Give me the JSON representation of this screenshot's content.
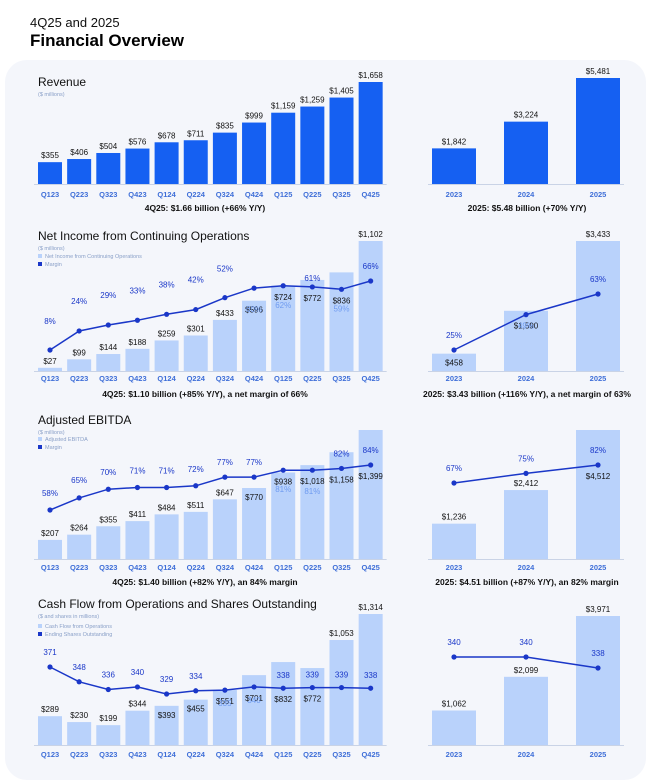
{
  "header": {
    "subtitle": "4Q25 and 2025",
    "title": "Financial Overview"
  },
  "colors": {
    "dark_bar": "#1560f2",
    "light_bar": "#b9d2fb",
    "line": "#1a37c8",
    "axis_label": "#3f6fd8",
    "light_label": "#6f9bf0",
    "muted": "#8aa0c8"
  },
  "chart_data": [
    {
      "id": "revenue-quarterly",
      "type": "bar",
      "title": "Revenue",
      "subtitle": "($ millions)",
      "categories": [
        "Q123",
        "Q223",
        "Q323",
        "Q423",
        "Q124",
        "Q224",
        "Q324",
        "Q424",
        "Q125",
        "Q225",
        "Q325",
        "Q425"
      ],
      "values": [
        355,
        406,
        504,
        576,
        678,
        711,
        835,
        999,
        1159,
        1259,
        1405,
        1658
      ],
      "value_labels": [
        "$355",
        "$406",
        "$504",
        "$576",
        "$678",
        "$711",
        "$835",
        "$999",
        "$1,159",
        "$1,259",
        "$1,405",
        "$1,658"
      ],
      "caption": "4Q25: $1.66 billion (+66% Y/Y)"
    },
    {
      "id": "revenue-annual",
      "type": "bar",
      "categories": [
        "2023",
        "2024",
        "2025"
      ],
      "values": [
        1842,
        3224,
        5481
      ],
      "value_labels": [
        "$1,842",
        "$3,224",
        "$5,481"
      ],
      "caption": "2025: $5.48 billion (+70% Y/Y)"
    },
    {
      "id": "net-income-quarterly",
      "type": "bar+line",
      "title": "Net Income from Continuing Operations",
      "subtitle": "($ millions)",
      "legend": [
        "Net Income from Continuing Operations",
        "Margin"
      ],
      "categories": [
        "Q123",
        "Q223",
        "Q323",
        "Q423",
        "Q124",
        "Q224",
        "Q324",
        "Q424",
        "Q125",
        "Q225",
        "Q325",
        "Q425"
      ],
      "values": [
        27,
        99,
        144,
        188,
        259,
        301,
        433,
        596,
        724,
        772,
        836,
        1102
      ],
      "value_labels": [
        "$27",
        "$99",
        "$144",
        "$188",
        "$259",
        "$301",
        "$433",
        "$596",
        "$724",
        "$772",
        "$836",
        "$1,102"
      ],
      "line_values": [
        8,
        24,
        29,
        33,
        38,
        42,
        52,
        60,
        62,
        61,
        59,
        66
      ],
      "line_labels": [
        "8%",
        "24%",
        "29%",
        "33%",
        "38%",
        "42%",
        "52%",
        "60%",
        "62%",
        "61%",
        "59%",
        "66%"
      ],
      "caption": "4Q25: $1.10 billion (+85% Y/Y), a net margin of 66%"
    },
    {
      "id": "net-income-annual",
      "type": "bar+line",
      "categories": [
        "2023",
        "2024",
        "2025"
      ],
      "values": [
        458,
        1590,
        3433
      ],
      "value_labels": [
        "$458",
        "$1,590",
        "$3,433"
      ],
      "line_values": [
        25,
        49,
        63
      ],
      "line_labels": [
        "25%",
        "49%",
        "63%"
      ],
      "caption": "2025:  $3.43 billion (+116% Y/Y), a net margin of 63%"
    },
    {
      "id": "ebitda-quarterly",
      "type": "bar+line",
      "title": "Adjusted EBITDA",
      "subtitle": "($ millions)",
      "legend": [
        "Adjusted EBITDA",
        "Margin"
      ],
      "categories": [
        "Q123",
        "Q223",
        "Q323",
        "Q423",
        "Q124",
        "Q224",
        "Q324",
        "Q424",
        "Q125",
        "Q225",
        "Q325",
        "Q425"
      ],
      "values": [
        207,
        264,
        355,
        411,
        484,
        511,
        647,
        770,
        938,
        1018,
        1158,
        1399
      ],
      "value_labels": [
        "$207",
        "$264",
        "$355",
        "$411",
        "$484",
        "$511",
        "$647",
        "$770",
        "$938",
        "$1,018",
        "$1,158",
        "$1,399"
      ],
      "line_values": [
        58,
        65,
        70,
        71,
        71,
        72,
        77,
        77,
        81,
        81,
        82,
        84
      ],
      "line_labels": [
        "58%",
        "65%",
        "70%",
        "71%",
        "71%",
        "72%",
        "77%",
        "77%",
        "81%",
        "81%",
        "82%",
        "84%"
      ],
      "caption": "4Q25: $1.40 billion (+82% Y/Y), an 84% margin"
    },
    {
      "id": "ebitda-annual",
      "type": "bar+line",
      "categories": [
        "2023",
        "2024",
        "2025"
      ],
      "values": [
        1236,
        2412,
        4512
      ],
      "value_labels": [
        "$1,236",
        "$2,412",
        "$4,512"
      ],
      "line_values": [
        67,
        75,
        82
      ],
      "line_labels": [
        "67%",
        "75%",
        "82%"
      ],
      "caption": "2025: $4.51 billion (+87% Y/Y), an 82% margin"
    },
    {
      "id": "cashflow-quarterly",
      "type": "bar+line",
      "title": "Cash Flow from Operations and Shares Outstanding",
      "subtitle": "($ and shares in millions)",
      "legend": [
        "Cash Flow from Operations",
        "Ending Shares Outstanding"
      ],
      "categories": [
        "Q123",
        "Q223",
        "Q323",
        "Q423",
        "Q124",
        "Q224",
        "Q324",
        "Q424",
        "Q125",
        "Q225",
        "Q325",
        "Q425"
      ],
      "values": [
        289,
        230,
        199,
        344,
        393,
        455,
        551,
        701,
        832,
        772,
        1053,
        1314
      ],
      "value_labels": [
        "$289",
        "$230",
        "$199",
        "$344",
        "$393",
        "$455",
        "$551",
        "$701",
        "$832",
        "$772",
        "$1,053",
        "$1,314"
      ],
      "line_values": [
        371,
        348,
        336,
        340,
        329,
        334,
        335,
        340,
        338,
        339,
        339,
        338
      ],
      "line_labels": [
        "371",
        "348",
        "336",
        "340",
        "329",
        "334",
        "335",
        "340",
        "338",
        "339",
        "339",
        "338"
      ]
    },
    {
      "id": "cashflow-annual",
      "type": "bar+line",
      "categories": [
        "2023",
        "2024",
        "2025"
      ],
      "values": [
        1062,
        2099,
        3971
      ],
      "value_labels": [
        "$1,062",
        "$2,099",
        "$3,971"
      ],
      "line_values": [
        340,
        340,
        338
      ],
      "line_labels": [
        "340",
        "340",
        "338"
      ]
    }
  ]
}
